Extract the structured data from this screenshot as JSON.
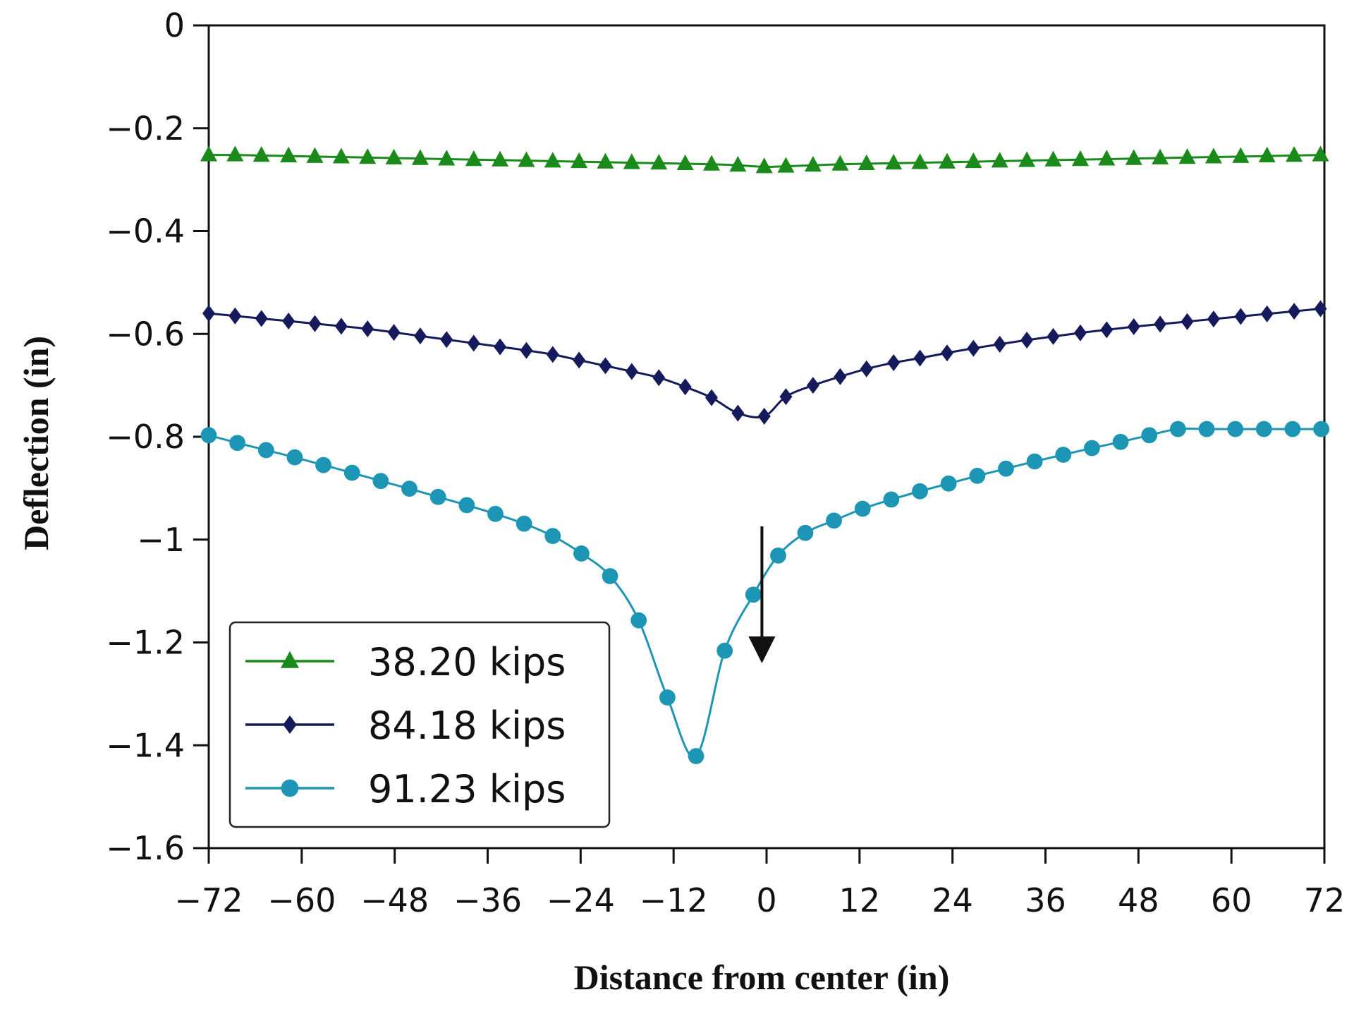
{
  "chart_data": {
    "type": "line",
    "xlabel": "Distance from center  (in)",
    "ylabel": "Deflection (in)",
    "xlim": [
      -72,
      72
    ],
    "ylim": [
      -1.6,
      0
    ],
    "xticks": [
      -72,
      -60,
      -48,
      -36,
      -24,
      -12,
      0,
      12,
      24,
      36,
      48,
      60,
      72
    ],
    "xtick_labels": [
      "−72",
      "−60",
      "−48",
      "−36",
      "−24",
      "−12",
      "0",
      "12",
      "24",
      "36",
      "48",
      "60",
      "72"
    ],
    "yticks": [
      0,
      -0.2,
      -0.4,
      -0.6,
      -0.8,
      -1,
      -1.2,
      -1.4,
      -1.6
    ],
    "ytick_labels": [
      "0",
      "−0.2",
      "−0.4",
      "−0.6",
      "−0.8",
      "−1",
      "−1.2",
      "−1.4",
      "−1.6"
    ],
    "legend_position": "bottom-left",
    "annotation": "downward arrow indicating load location at center",
    "series": [
      {
        "name": "38.20 kips",
        "color": "#1a8a1a",
        "marker": "triangle",
        "x": [
          -72,
          -68.6,
          -65.2,
          -61.7,
          -58.3,
          -54.9,
          -51.5,
          -48.1,
          -44.7,
          -41.3,
          -37.8,
          -34.4,
          -31.0,
          -27.6,
          -24.2,
          -20.8,
          -17.4,
          -13.9,
          -10.5,
          -7.1,
          -3.7,
          -0.3,
          2.5,
          6.0,
          9.5,
          12.9,
          16.4,
          19.8,
          23.3,
          26.7,
          30.1,
          33.6,
          37.0,
          40.5,
          43.9,
          47.4,
          50.8,
          54.3,
          57.7,
          61.2,
          64.6,
          68.1,
          71.5
        ],
        "y": [
          -0.252,
          -0.252,
          -0.253,
          -0.254,
          -0.255,
          -0.256,
          -0.257,
          -0.258,
          -0.259,
          -0.26,
          -0.261,
          -0.262,
          -0.263,
          -0.264,
          -0.265,
          -0.266,
          -0.267,
          -0.268,
          -0.269,
          -0.27,
          -0.272,
          -0.275,
          -0.274,
          -0.272,
          -0.27,
          -0.269,
          -0.268,
          -0.267,
          -0.266,
          -0.265,
          -0.264,
          -0.263,
          -0.262,
          -0.261,
          -0.26,
          -0.259,
          -0.258,
          -0.257,
          -0.256,
          -0.255,
          -0.254,
          -0.253,
          -0.252
        ]
      },
      {
        "name": "84.18 kips",
        "color": "#141a5c",
        "marker": "diamond",
        "x": [
          -72,
          -68.6,
          -65.2,
          -61.7,
          -58.3,
          -54.9,
          -51.5,
          -48.1,
          -44.7,
          -41.3,
          -37.8,
          -34.4,
          -31.0,
          -27.6,
          -24.2,
          -20.8,
          -17.4,
          -13.9,
          -10.5,
          -7.1,
          -3.7,
          -0.3,
          2.5,
          6.0,
          9.5,
          12.9,
          16.4,
          19.8,
          23.3,
          26.7,
          30.1,
          33.6,
          37.0,
          40.5,
          43.9,
          47.4,
          50.8,
          54.3,
          57.7,
          61.2,
          64.6,
          68.1,
          71.5
        ],
        "y": [
          -0.56,
          -0.565,
          -0.57,
          -0.575,
          -0.58,
          -0.585,
          -0.59,
          -0.597,
          -0.604,
          -0.611,
          -0.618,
          -0.625,
          -0.632,
          -0.64,
          -0.651,
          -0.662,
          -0.673,
          -0.685,
          -0.703,
          -0.724,
          -0.754,
          -0.76,
          -0.722,
          -0.7,
          -0.683,
          -0.668,
          -0.656,
          -0.647,
          -0.637,
          -0.628,
          -0.62,
          -0.612,
          -0.605,
          -0.598,
          -0.592,
          -0.586,
          -0.581,
          -0.576,
          -0.571,
          -0.566,
          -0.561,
          -0.556,
          -0.551
        ]
      },
      {
        "name": "91.23 kips",
        "color": "#1d95b5",
        "marker": "circle",
        "x": [
          -72,
          -68.3,
          -64.6,
          -60.9,
          -57.2,
          -53.5,
          -49.8,
          -46.1,
          -42.4,
          -38.7,
          -35.0,
          -31.3,
          -27.6,
          -23.9,
          -20.2,
          -16.5,
          -12.8,
          -9.1,
          -5.4,
          -1.7,
          1.5,
          5.0,
          8.7,
          12.4,
          16.1,
          19.8,
          23.5,
          27.2,
          30.9,
          34.6,
          38.3,
          42.0,
          45.7,
          49.4,
          53.1,
          56.8,
          60.5,
          64.2,
          67.9,
          71.6
        ],
        "y": [
          -0.797,
          -0.812,
          -0.826,
          -0.84,
          -0.855,
          -0.87,
          -0.886,
          -0.901,
          -0.917,
          -0.933,
          -0.95,
          -0.969,
          -0.993,
          -1.027,
          -1.071,
          -1.157,
          -1.307,
          -1.421,
          -1.216,
          -1.107,
          -1.031,
          -0.987,
          -0.963,
          -0.94,
          -0.922,
          -0.906,
          -0.891,
          -0.876,
          -0.862,
          -0.848,
          -0.835,
          -0.822,
          -0.81,
          -0.797,
          -0.785,
          -0.785,
          -0.785,
          -0.785,
          -0.785,
          -0.785
        ]
      }
    ]
  }
}
